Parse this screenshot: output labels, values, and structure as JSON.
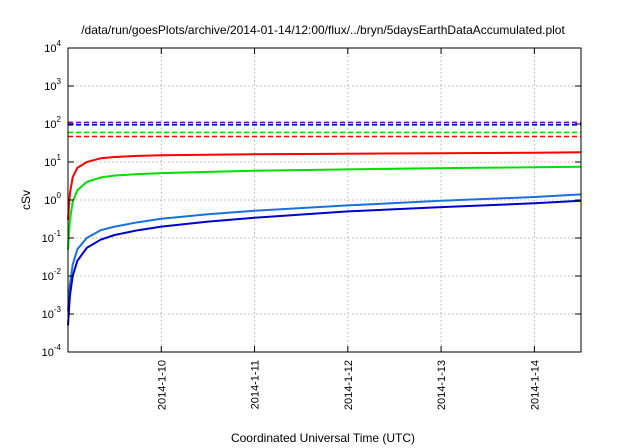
{
  "chart_data": {
    "type": "line",
    "title": "/data/run/goesPlots/archive/2014-01-14/12:00/flux/../bryn/5daysEarthDataAccumulated.plot",
    "xlabel": "Coordinated Universal Time (UTC)",
    "ylabel": "cSv",
    "yscale": "log",
    "ylim": [
      0.0001,
      10000
    ],
    "xlim": [
      0,
      5.5
    ],
    "y_ticks": [
      {
        "value": 0.0001,
        "base": "10",
        "exp": "-4"
      },
      {
        "value": 0.001,
        "base": "10",
        "exp": "-3"
      },
      {
        "value": 0.01,
        "base": "10",
        "exp": "-2"
      },
      {
        "value": 0.1,
        "base": "10",
        "exp": "-1"
      },
      {
        "value": 1,
        "base": "10",
        "exp": "0"
      },
      {
        "value": 10,
        "base": "10",
        "exp": "1"
      },
      {
        "value": 100,
        "base": "10",
        "exp": "2"
      },
      {
        "value": 1000,
        "base": "10",
        "exp": "3"
      },
      {
        "value": 10000,
        "base": "10",
        "exp": "4"
      }
    ],
    "x_ticks": [
      {
        "value": 1,
        "label": "2014-1-10"
      },
      {
        "value": 2,
        "label": "2014-1-11"
      },
      {
        "value": 3,
        "label": "2014-1-12"
      },
      {
        "value": 4,
        "label": "2014-1-13"
      },
      {
        "value": 5,
        "label": "2014-1-14"
      }
    ],
    "grid": true,
    "series": [
      {
        "color": "#ff0000",
        "style": "solid",
        "x": [
          0,
          0.02,
          0.05,
          0.1,
          0.2,
          0.35,
          0.5,
          0.75,
          1,
          1.5,
          2,
          3,
          4,
          5,
          5.5
        ],
        "y": [
          0.3,
          1.5,
          4,
          7,
          10,
          12.5,
          13.5,
          14.5,
          15,
          15.5,
          16,
          16.5,
          17,
          17.5,
          18
        ]
      },
      {
        "color": "#00e000",
        "style": "solid",
        "x": [
          0,
          0.02,
          0.05,
          0.1,
          0.2,
          0.35,
          0.5,
          0.75,
          1,
          1.5,
          2,
          3,
          4,
          5,
          5.5
        ],
        "y": [
          0.05,
          0.3,
          0.9,
          1.8,
          3,
          3.9,
          4.4,
          4.8,
          5.1,
          5.5,
          5.9,
          6.4,
          6.9,
          7.3,
          7.5
        ]
      },
      {
        "color": "#1a70e0",
        "style": "solid",
        "x": [
          0,
          0.02,
          0.05,
          0.1,
          0.2,
          0.35,
          0.5,
          0.75,
          1,
          1.5,
          2,
          3,
          4,
          5,
          5.5
        ],
        "y": [
          0.0012,
          0.006,
          0.02,
          0.05,
          0.1,
          0.16,
          0.2,
          0.26,
          0.32,
          0.42,
          0.52,
          0.72,
          0.95,
          1.2,
          1.4
        ]
      },
      {
        "color": "#0000cc",
        "style": "solid",
        "x": [
          0,
          0.02,
          0.05,
          0.1,
          0.2,
          0.35,
          0.5,
          0.75,
          1,
          1.5,
          2,
          3,
          4,
          5,
          5.5
        ],
        "y": [
          0.0005,
          0.003,
          0.01,
          0.025,
          0.055,
          0.09,
          0.12,
          0.16,
          0.2,
          0.27,
          0.34,
          0.5,
          0.65,
          0.82,
          0.95
        ]
      },
      {
        "color": "#8000c0",
        "style": "dashed",
        "x": [
          0,
          5.5
        ],
        "y": [
          110,
          110
        ]
      },
      {
        "color": "#0000cc",
        "style": "dashed",
        "x": [
          0,
          5.5
        ],
        "y": [
          95,
          95
        ]
      },
      {
        "color": "#00e000",
        "style": "dashed",
        "x": [
          0,
          5.5
        ],
        "y": [
          60,
          60
        ]
      },
      {
        "color": "#ff0000",
        "style": "dashed",
        "x": [
          0,
          5.5
        ],
        "y": [
          47,
          47
        ]
      }
    ]
  }
}
